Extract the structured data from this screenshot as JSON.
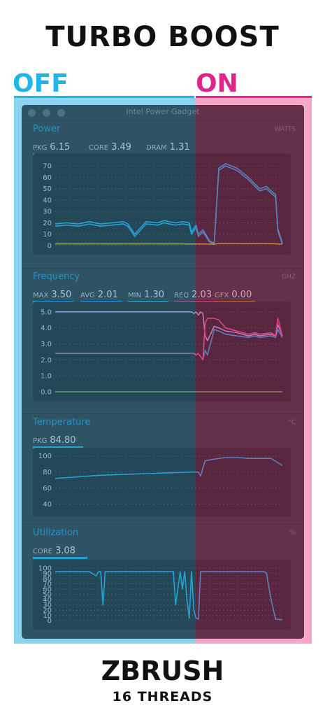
{
  "headline": "TURBO BOOST",
  "modes": {
    "off": "OFF",
    "on": "ON"
  },
  "window": {
    "title": "Intel Power Gadget"
  },
  "footer": {
    "app": "ZBRUSH",
    "threads": "16 THREADS"
  },
  "colors": {
    "off": "#1fb5e6",
    "on": "#e0248a",
    "blue": "#2fb4ec",
    "lavender": "#c9a6e9",
    "yellow": "#c9b53e",
    "pink": "#f05a9a",
    "gfx": "#d99a4a",
    "green": "#7dbd6a"
  },
  "sections": [
    {
      "key": "power",
      "title": "Power",
      "unit": "WATTS",
      "metrics": [
        {
          "label": "PKG",
          "value": "6.15",
          "color": "#2fb4ec"
        },
        {
          "label": "CORE",
          "value": "3.49",
          "color": "#2fb4ec"
        },
        {
          "label": "DRAM",
          "value": "1.31",
          "color": "#c9b53e"
        }
      ]
    },
    {
      "key": "frequency",
      "title": "Frequency",
      "unit": "GHZ",
      "metrics": [
        {
          "label": "MAX",
          "value": "3.50",
          "color": "#2fb4ec"
        },
        {
          "label": "AVG",
          "value": "2.01",
          "color": "#2fb4ec"
        },
        {
          "label": "MIN",
          "value": "1.30",
          "color": "#6fcaf0"
        },
        {
          "label": "REQ",
          "value": "2.03",
          "color": "#f05a9a"
        },
        {
          "label": "GFX",
          "value": "0.00",
          "color": "#d99a4a"
        }
      ]
    },
    {
      "key": "temperature",
      "title": "Temperature",
      "unit": "°C",
      "metrics": [
        {
          "label": "PKG",
          "value": "84.80",
          "color": "#2fb4ec"
        }
      ]
    },
    {
      "key": "utilization",
      "title": "Utilization",
      "unit": "%",
      "metrics": [
        {
          "label": "CORE",
          "value": "3.08",
          "color": "#2fb4ec"
        }
      ]
    }
  ],
  "chart_data": [
    {
      "type": "line",
      "title": "Power",
      "ylabel": "WATTS",
      "ylim": [
        0,
        75
      ],
      "yticks": [
        "0",
        "10",
        "20",
        "30",
        "40",
        "50",
        "60",
        "70"
      ],
      "grid": true,
      "x": [
        0,
        5,
        10,
        15,
        20,
        25,
        30,
        32,
        35,
        40,
        45,
        48,
        50,
        53,
        56,
        59,
        60,
        62,
        63,
        65,
        68,
        70,
        72,
        75,
        80,
        85,
        90,
        93,
        95,
        97,
        98,
        100
      ],
      "series": [
        {
          "name": "PKG",
          "color": "#2fb4ec",
          "values": [
            19,
            20,
            19,
            21,
            19,
            20,
            21,
            19,
            10,
            21,
            20,
            22,
            21,
            20,
            21,
            20,
            12,
            18,
            10,
            14,
            4,
            2,
            68,
            72,
            68,
            60,
            50,
            52,
            48,
            45,
            15,
            2
          ]
        },
        {
          "name": "CORE",
          "color": "#2fb4ec",
          "values": [
            17,
            18,
            17,
            19,
            17,
            18,
            19,
            17,
            8,
            19,
            18,
            20,
            19,
            18,
            19,
            18,
            10,
            16,
            8,
            12,
            3,
            1,
            66,
            70,
            66,
            58,
            48,
            50,
            46,
            43,
            13,
            1
          ]
        },
        {
          "name": "DRAM",
          "color": "#c9b53e",
          "values": [
            1.5,
            1.5,
            1.4,
            1.5,
            1.5,
            1.4,
            1.5,
            1.5,
            1.4,
            1.5,
            1.5,
            1.4,
            1.5,
            1.5,
            1.4,
            1.5,
            1.4,
            1.5,
            1.4,
            1.5,
            1.3,
            1.2,
            1.8,
            1.8,
            1.8,
            1.7,
            1.8,
            1.7,
            1.7,
            1.6,
            1.5,
            1.3
          ]
        }
      ]
    },
    {
      "type": "line",
      "title": "Frequency",
      "ylabel": "GHZ",
      "ylim": [
        0,
        5.3
      ],
      "yticks": [
        "0.0",
        "1.0",
        "2.0",
        "3.0",
        "4.0",
        "5.0"
      ],
      "grid": true,
      "x": [
        0,
        10,
        20,
        30,
        40,
        50,
        60,
        61,
        62,
        63,
        64,
        65,
        66,
        67,
        70,
        72,
        75,
        80,
        85,
        88,
        90,
        95,
        97,
        98,
        100
      ],
      "series": [
        {
          "name": "MAX",
          "color": "#c9a6e9",
          "values": [
            5.0,
            5.0,
            5.0,
            5.0,
            5.0,
            5.0,
            5.0,
            4.9,
            5.0,
            4.8,
            5.0,
            4.9,
            3.5,
            3.2,
            4.1,
            4.0,
            3.8,
            3.7,
            3.5,
            3.6,
            3.5,
            3.6,
            3.5,
            4.2,
            3.5
          ]
        },
        {
          "name": "AVG",
          "color": "#2fb4ec",
          "values": [
            2.4,
            2.4,
            2.4,
            2.4,
            2.4,
            2.4,
            2.4,
            2.4,
            2.3,
            2.4,
            2.2,
            2.0,
            2.6,
            2.3,
            3.9,
            3.8,
            3.6,
            3.5,
            3.4,
            3.5,
            3.4,
            3.5,
            3.4,
            3.9,
            3.4
          ]
        },
        {
          "name": "REQ",
          "color": "#f05a9a",
          "values": [
            2.4,
            2.4,
            2.4,
            2.4,
            2.4,
            2.4,
            2.4,
            2.4,
            2.3,
            2.4,
            2.2,
            2.0,
            4.3,
            4.6,
            4.6,
            4.5,
            4.0,
            3.8,
            3.6,
            3.7,
            3.6,
            3.7,
            3.5,
            4.6,
            3.5
          ]
        },
        {
          "name": "GFX",
          "color": "#7dbd6a",
          "values": [
            0,
            0,
            0,
            0,
            0,
            0,
            0,
            0,
            0,
            0,
            0,
            0,
            0,
            0,
            0,
            0,
            0,
            0,
            0,
            0,
            0,
            0,
            0,
            0,
            0
          ]
        }
      ]
    },
    {
      "type": "line",
      "title": "Temperature",
      "ylabel": "°C",
      "ylim": [
        30,
        105
      ],
      "yticks": [
        "40",
        "60",
        "80",
        "100"
      ],
      "grid": true,
      "x": [
        0,
        10,
        20,
        30,
        40,
        50,
        60,
        63,
        64,
        66,
        70,
        75,
        80,
        85,
        90,
        95,
        100
      ],
      "series": [
        {
          "name": "PKG",
          "color": "#2fb4ec",
          "values": [
            72,
            74,
            76,
            77,
            78,
            79,
            80,
            80,
            75,
            94,
            96,
            98,
            98,
            97,
            97,
            97,
            88
          ]
        }
      ]
    },
    {
      "type": "line",
      "title": "Utilization",
      "ylabel": "%",
      "ylim": [
        -5,
        105
      ],
      "yticks": [
        "0",
        "10",
        "20",
        "30",
        "40",
        "50",
        "60",
        "70",
        "80",
        "90",
        "100"
      ],
      "grid": true,
      "x": [
        0,
        10,
        15,
        18,
        19,
        20,
        21,
        22,
        30,
        40,
        50,
        52,
        53,
        55,
        56,
        57,
        58,
        59,
        60,
        61,
        62,
        63,
        64,
        65,
        70,
        80,
        90,
        92,
        93,
        95,
        97,
        100
      ],
      "series": [
        {
          "name": "CORE",
          "color": "#2fb4ec",
          "values": [
            93,
            93,
            93,
            85,
            93,
            93,
            30,
            93,
            93,
            93,
            93,
            93,
            30,
            93,
            60,
            93,
            40,
            5,
            93,
            20,
            5,
            3,
            93,
            93,
            93,
            93,
            93,
            93,
            90,
            40,
            3,
            2
          ]
        }
      ]
    }
  ]
}
